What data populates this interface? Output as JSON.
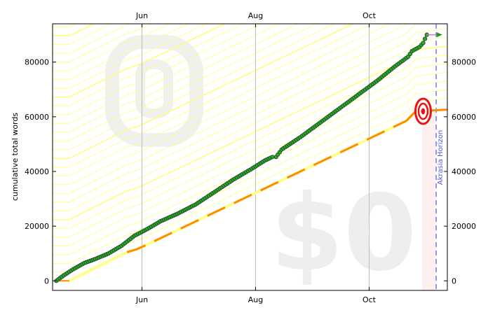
{
  "chart_data": {
    "type": "line",
    "title": "",
    "xlabel": "",
    "ylabel": "cumulative total words",
    "x_tick_labels": [
      "Jun",
      "Aug",
      "Oct"
    ],
    "y_tick_labels": [
      "0",
      "20000",
      "40000",
      "60000",
      "80000"
    ],
    "xlim": [
      "2016-04-14",
      "2016-11-12"
    ],
    "ylim": [
      -3500,
      94000
    ],
    "x_ticks": [
      "2016-06-01",
      "2016-08-01",
      "2016-10-01"
    ],
    "y_ticks": [
      0,
      20000,
      40000,
      60000,
      80000
    ],
    "grid": "vertical at month ticks",
    "series": [
      {
        "role": "datapoints",
        "marker": "green-circle",
        "points": [
          [
            "2016-04-16",
            0
          ],
          [
            "2016-04-20",
            2000
          ],
          [
            "2016-04-25",
            4200
          ],
          [
            "2016-05-01",
            6500
          ],
          [
            "2016-05-07",
            8000
          ],
          [
            "2016-05-14",
            10000
          ],
          [
            "2016-05-21",
            12800
          ],
          [
            "2016-05-28",
            16500
          ],
          [
            "2016-06-04",
            19000
          ],
          [
            "2016-06-11",
            21800
          ],
          [
            "2016-06-20",
            24500
          ],
          [
            "2016-06-30",
            28000
          ],
          [
            "2016-07-10",
            32500
          ],
          [
            "2016-07-20",
            37000
          ],
          [
            "2016-07-30",
            41000
          ],
          [
            "2016-08-06",
            44000
          ],
          [
            "2016-08-10",
            45300
          ],
          [
            "2016-08-12",
            45300
          ],
          [
            "2016-08-15",
            48000
          ],
          [
            "2016-08-25",
            52500
          ],
          [
            "2016-09-05",
            58000
          ],
          [
            "2016-09-15",
            63000
          ],
          [
            "2016-09-25",
            68000
          ],
          [
            "2016-10-05",
            73000
          ],
          [
            "2016-10-15",
            78500
          ],
          [
            "2016-10-22",
            82000
          ],
          [
            "2016-10-24",
            84000
          ],
          [
            "2016-10-28",
            85500
          ],
          [
            "2016-10-30",
            87000
          ],
          [
            "2016-11-01",
            90000
          ]
        ]
      },
      {
        "role": "bright-red-line",
        "color": "#ff8c00",
        "points": [
          [
            "2016-04-16",
            0
          ],
          [
            "2016-04-23",
            0
          ],
          [
            "2016-05-24",
            10500
          ],
          [
            "2016-05-29",
            11500
          ],
          [
            "2016-06-03",
            13000
          ],
          [
            "2016-10-21",
            58500
          ],
          [
            "2016-10-26",
            62000
          ],
          [
            "2016-11-12",
            62600
          ]
        ]
      },
      {
        "role": "yellow-brick-road",
        "color": "#ffff88",
        "points": [
          [
            "2016-04-23",
            0
          ],
          [
            "2016-05-24",
            10500
          ],
          [
            "2016-05-29",
            11500
          ],
          [
            "2016-06-03",
            13000
          ],
          [
            "2016-10-21",
            58500
          ],
          [
            "2016-10-26",
            62000
          ]
        ]
      }
    ],
    "annotations": {
      "horizon_date": "2016-11-06",
      "horizon_label": "Akrasia Horizon",
      "target_value": 62600,
      "target_date": "2016-10-30",
      "watermark_safe_days": "$0"
    },
    "colors": {
      "points_fill": "#1ab31a",
      "points_edge": "#333333",
      "data_line": "#c080c0",
      "bright_red_line": "#ff8c00",
      "road": "#ffff88",
      "guidelines": "#ffff77",
      "grid": "#bbbbbb",
      "horizon": "#7777ee",
      "horizon_text": "#5555dd",
      "bullseye_red": "#ee1111",
      "watermark": "#f0f0f0"
    }
  }
}
